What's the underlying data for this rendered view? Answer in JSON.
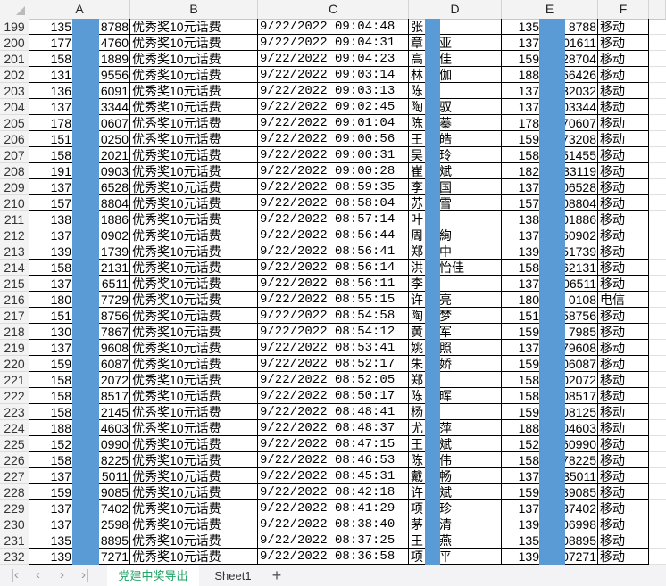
{
  "columns": [
    "A",
    "B",
    "C",
    "D",
    "E",
    "F"
  ],
  "rows": [
    {
      "n": "199",
      "a1": "135",
      "a2": "8788",
      "b": "优秀奖10元话费",
      "c": "9/22/2022  09:04:48",
      "d1": "张",
      "d2": "",
      "e1": "135",
      "e2": "8788",
      "f": "移动"
    },
    {
      "n": "200",
      "a1": "177",
      "a2": "4760",
      "b": "优秀奖10元话费",
      "c": "9/22/2022  09:04:31",
      "d1": "章",
      "d2": "亚",
      "e1": "137",
      "e2": "01611",
      "f": "移动"
    },
    {
      "n": "201",
      "a1": "158",
      "a2": "1889",
      "b": "优秀奖10元话费",
      "c": "9/22/2022  09:04:23",
      "d1": "高",
      "d2": "佳",
      "e1": "159",
      "e2": "28704",
      "f": "移动"
    },
    {
      "n": "202",
      "a1": "131",
      "a2": "9556",
      "b": "优秀奖10元话费",
      "c": "9/22/2022  09:03:14",
      "d1": "林",
      "d2": "伽",
      "e1": "188",
      "e2": "66426",
      "f": "移动"
    },
    {
      "n": "203",
      "a1": "136",
      "a2": "6091",
      "b": "优秀奖10元话费",
      "c": "9/22/2022  09:03:13",
      "d1": "陈",
      "d2": "",
      "e1": "137",
      "e2": "32032",
      "f": "移动"
    },
    {
      "n": "204",
      "a1": "137",
      "a2": "3344",
      "b": "优秀奖10元话费",
      "c": "9/22/2022  09:02:45",
      "d1": "陶",
      "d2": "驭",
      "e1": "137",
      "e2": "03344",
      "f": "移动"
    },
    {
      "n": "205",
      "a1": "178",
      "a2": "0607",
      "b": "优秀奖10元话费",
      "c": "9/22/2022  09:01:04",
      "d1": "陈",
      "d2": "蓁",
      "e1": "178",
      "e2": "70607",
      "f": "移动"
    },
    {
      "n": "206",
      "a1": "151",
      "a2": "0250",
      "b": "优秀奖10元话费",
      "c": "9/22/2022  09:00:56",
      "d1": "王",
      "d2": "皓",
      "e1": "159",
      "e2": "73208",
      "f": "移动"
    },
    {
      "n": "207",
      "a1": "158",
      "a2": "2021",
      "b": "优秀奖10元话费",
      "c": "9/22/2022  09:00:31",
      "d1": "吴",
      "d2": "玲",
      "e1": "158",
      "e2": "51455",
      "f": "移动"
    },
    {
      "n": "208",
      "a1": "191",
      "a2": "0903",
      "b": "优秀奖10元话费",
      "c": "9/22/2022  09:00:28",
      "d1": "崔",
      "d2": "斌",
      "e1": "182",
      "e2": "33119",
      "f": "移动"
    },
    {
      "n": "209",
      "a1": "137",
      "a2": "6528",
      "b": "优秀奖10元话费",
      "c": "9/22/2022  08:59:35",
      "d1": "李",
      "d2": "国",
      "e1": "137",
      "e2": "06528",
      "f": "移动"
    },
    {
      "n": "210",
      "a1": "157",
      "a2": "8804",
      "b": "优秀奖10元话费",
      "c": "9/22/2022  08:58:04",
      "d1": "苏",
      "d2": "雪",
      "e1": "157",
      "e2": "08804",
      "f": "移动"
    },
    {
      "n": "211",
      "a1": "138",
      "a2": "1886",
      "b": "优秀奖10元话费",
      "c": "9/22/2022  08:57:14",
      "d1": "叶",
      "d2": "",
      "e1": "138",
      "e2": "01886",
      "f": "移动"
    },
    {
      "n": "212",
      "a1": "137",
      "a2": "0902",
      "b": "优秀奖10元话费",
      "c": "9/22/2022  08:56:44",
      "d1": "周",
      "d2": "絢",
      "e1": "137",
      "e2": "60902",
      "f": "移动"
    },
    {
      "n": "213",
      "a1": "139",
      "a2": "1739",
      "b": "优秀奖10元话费",
      "c": "9/22/2022  08:56:41",
      "d1": "郑",
      "d2": "中",
      "e1": "139",
      "e2": "51739",
      "f": "移动"
    },
    {
      "n": "214",
      "a1": "158",
      "a2": "2131",
      "b": "优秀奖10元话费",
      "c": "9/22/2022  08:56:14",
      "d1": "洪",
      "d2": "怡佳",
      "e1": "158",
      "e2": "62131",
      "f": "移动"
    },
    {
      "n": "215",
      "a1": "137",
      "a2": "6511",
      "b": "优秀奖10元话费",
      "c": "9/22/2022  08:56:11",
      "d1": "李",
      "d2": "",
      "e1": "137",
      "e2": "06511",
      "f": "移动"
    },
    {
      "n": "216",
      "a1": "180",
      "a2": "7729",
      "b": "优秀奖10元话费",
      "c": "9/22/2022  08:55:15",
      "d1": "许",
      "d2": "亮",
      "e1": "180",
      "e2": "0108",
      "f": "电信"
    },
    {
      "n": "217",
      "a1": "151",
      "a2": "8756",
      "b": "优秀奖10元话费",
      "c": "9/22/2022  08:54:58",
      "d1": "陶",
      "d2": "梦",
      "e1": "151",
      "e2": "58756",
      "f": "移动"
    },
    {
      "n": "218",
      "a1": "130",
      "a2": "7867",
      "b": "优秀奖10元话费",
      "c": "9/22/2022  08:54:12",
      "d1": "黄",
      "d2": "军",
      "e1": "159",
      "e2": "7985",
      "f": "移动"
    },
    {
      "n": "219",
      "a1": "137",
      "a2": "9608",
      "b": "优秀奖10元话费",
      "c": "9/22/2022  08:53:41",
      "d1": "姚",
      "d2": "照",
      "e1": "137",
      "e2": "79608",
      "f": "移动"
    },
    {
      "n": "220",
      "a1": "159",
      "a2": "6087",
      "b": "优秀奖10元话费",
      "c": "9/22/2022  08:52:17",
      "d1": "朱",
      "d2": "娇",
      "e1": "159",
      "e2": "06087",
      "f": "移动"
    },
    {
      "n": "221",
      "a1": "158",
      "a2": "2072",
      "b": "优秀奖10元话费",
      "c": "9/22/2022  08:52:05",
      "d1": "郑",
      "d2": "",
      "e1": "158",
      "e2": "02072",
      "f": "移动"
    },
    {
      "n": "222",
      "a1": "158",
      "a2": "8517",
      "b": "优秀奖10元话费",
      "c": "9/22/2022  08:50:17",
      "d1": "陈",
      "d2": "晖",
      "e1": "158",
      "e2": "08517",
      "f": "移动"
    },
    {
      "n": "223",
      "a1": "158",
      "a2": "2145",
      "b": "优秀奖10元话费",
      "c": "9/22/2022  08:48:41",
      "d1": "杨",
      "d2": "",
      "e1": "159",
      "e2": "08125",
      "f": "移动"
    },
    {
      "n": "224",
      "a1": "188",
      "a2": "4603",
      "b": "优秀奖10元话费",
      "c": "9/22/2022  08:48:37",
      "d1": "尤",
      "d2": "萍",
      "e1": "188",
      "e2": "04603",
      "f": "移动"
    },
    {
      "n": "225",
      "a1": "152",
      "a2": "0990",
      "b": "优秀奖10元话费",
      "c": "9/22/2022  08:47:15",
      "d1": "王",
      "d2": "斌",
      "e1": "152",
      "e2": "60990",
      "f": "移动"
    },
    {
      "n": "226",
      "a1": "158",
      "a2": "8225",
      "b": "优秀奖10元话费",
      "c": "9/22/2022  08:46:53",
      "d1": "陈",
      "d2": "伟",
      "e1": "158",
      "e2": "78225",
      "f": "移动"
    },
    {
      "n": "227",
      "a1": "137",
      "a2": "5011",
      "b": "优秀奖10元话费",
      "c": "9/22/2022  08:45:31",
      "d1": "戴",
      "d2": "畅",
      "e1": "137",
      "e2": "35011",
      "f": "移动"
    },
    {
      "n": "228",
      "a1": "159",
      "a2": "9085",
      "b": "优秀奖10元话费",
      "c": "9/22/2022  08:42:18",
      "d1": "许",
      "d2": "斌",
      "e1": "159",
      "e2": "39085",
      "f": "移动"
    },
    {
      "n": "229",
      "a1": "137",
      "a2": "7402",
      "b": "优秀奖10元话费",
      "c": "9/22/2022  08:41:29",
      "d1": "项",
      "d2": "珍",
      "e1": "137",
      "e2": "37402",
      "f": "移动"
    },
    {
      "n": "230",
      "a1": "137",
      "a2": "2598",
      "b": "优秀奖10元话费",
      "c": "9/22/2022  08:38:40",
      "d1": "茅",
      "d2": "清",
      "e1": "139",
      "e2": "06998",
      "f": "移动"
    },
    {
      "n": "231",
      "a1": "135",
      "a2": "8895",
      "b": "优秀奖10元话费",
      "c": "9/22/2022  08:37:25",
      "d1": "王",
      "d2": "燕",
      "e1": "135",
      "e2": "08895",
      "f": "移动"
    },
    {
      "n": "232",
      "a1": "139",
      "a2": "7271",
      "b": "优秀奖10元话费",
      "c": "9/22/2022  08:36:58",
      "d1": "项",
      "d2": "平",
      "e1": "139",
      "e2": "07271",
      "f": "移动"
    }
  ],
  "sheet_tabs": [
    {
      "label": "党建中奖导出",
      "active": true
    },
    {
      "label": "Sheet1",
      "active": false
    }
  ],
  "add_sheet_label": "+",
  "colors": {
    "redaction": "#5b9bd5",
    "active_tab_text": "#21a366"
  },
  "icons": {
    "first": "chevron-first-icon",
    "prev": "chevron-left-icon",
    "next": "chevron-right-icon",
    "last": "chevron-last-icon"
  }
}
